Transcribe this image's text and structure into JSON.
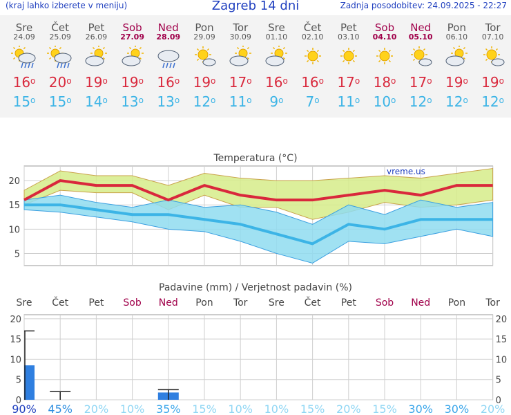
{
  "header": {
    "menu_hint": "(kraj lahko izberete v meniju)",
    "title": "Zagreb 14 dni",
    "updated": "Zadnja posodobitev: 24.09.2025 - 22:27"
  },
  "days": [
    {
      "name": "Sre",
      "date": "24.09",
      "icon": "sun-cloud-rain-icon",
      "max": "16",
      "min": "15",
      "weekend": false
    },
    {
      "name": "Čet",
      "date": "25.09",
      "icon": "sun-cloud-rain-icon",
      "max": "20",
      "min": "15",
      "weekend": false
    },
    {
      "name": "Pet",
      "date": "26.09",
      "icon": "sun-cloud-icon",
      "max": "19",
      "min": "14",
      "weekend": false
    },
    {
      "name": "Sob",
      "date": "27.09",
      "icon": "sun-cloud-icon",
      "max": "19",
      "min": "13",
      "weekend": true
    },
    {
      "name": "Ned",
      "date": "28.09",
      "icon": "cloud-rain-icon",
      "max": "16",
      "min": "13",
      "weekend": true
    },
    {
      "name": "Pon",
      "date": "29.09",
      "icon": "sun-small-cloud-icon",
      "max": "19",
      "min": "12",
      "weekend": false
    },
    {
      "name": "Tor",
      "date": "30.09",
      "icon": "sun-cloud-icon",
      "max": "17",
      "min": "11",
      "weekend": false
    },
    {
      "name": "Sre",
      "date": "01.10",
      "icon": "sun-cloud-icon",
      "max": "16",
      "min": "9",
      "weekend": false
    },
    {
      "name": "Čet",
      "date": "02.10",
      "icon": "sun-icon",
      "max": "16",
      "min": "7",
      "weekend": false
    },
    {
      "name": "Pet",
      "date": "03.10",
      "icon": "sun-icon",
      "max": "17",
      "min": "11",
      "weekend": false
    },
    {
      "name": "Sob",
      "date": "04.10",
      "icon": "sun-icon",
      "max": "18",
      "min": "10",
      "weekend": true
    },
    {
      "name": "Ned",
      "date": "05.10",
      "icon": "sun-small-cloud-icon",
      "max": "17",
      "min": "12",
      "weekend": true
    },
    {
      "name": "Pon",
      "date": "06.10",
      "icon": "sun-cloud-icon",
      "max": "19",
      "min": "12",
      "weekend": false
    },
    {
      "name": "Tor",
      "date": "07.10",
      "icon": "sun-small-cloud-icon",
      "max": "19",
      "min": "12",
      "weekend": false
    }
  ],
  "colors": {
    "max": "#d9283c",
    "min": "#3cb4e6",
    "weekend": "#a0004a",
    "max_band": "#d6ec8a",
    "min_band": "#8fdcf0",
    "overlap": "#7ccf6a",
    "precip_bar": "#2f7fe0"
  },
  "chart_data": [
    {
      "type": "line",
      "title": "Temperatura (°C)",
      "watermark": "vreme.us",
      "categories": [
        "24.09",
        "25.09",
        "26.09",
        "27.09",
        "28.09",
        "29.09",
        "30.09",
        "01.10",
        "02.10",
        "03.10",
        "04.10",
        "05.10",
        "06.10",
        "07.10"
      ],
      "ylim": [
        2.5,
        23
      ],
      "yticks": [
        5,
        10,
        15,
        20
      ],
      "series": [
        {
          "key": "max",
          "values": [
            16,
            20,
            19,
            19,
            16,
            19,
            17,
            16,
            16,
            17,
            18,
            17,
            19,
            19
          ]
        },
        {
          "key": "min",
          "values": [
            15,
            15,
            14,
            13,
            13,
            12,
            11,
            9,
            7,
            11,
            10,
            12,
            12,
            12
          ]
        }
      ],
      "max_band": {
        "low": [
          15,
          18,
          17.5,
          17.5,
          14,
          17,
          14.5,
          14.5,
          12,
          13.5,
          15.5,
          14.5,
          15,
          16
        ],
        "high": [
          18,
          22,
          21,
          21,
          19,
          21.5,
          20.5,
          20,
          20,
          20.5,
          21,
          20.5,
          21.5,
          22.5
        ]
      },
      "min_band": {
        "low": [
          14,
          13.5,
          12.5,
          11.5,
          10,
          9.5,
          7.5,
          5,
          3,
          7.5,
          7,
          8.5,
          10,
          8.5
        ],
        "high": [
          16,
          17,
          15.5,
          14.5,
          16,
          14.5,
          15,
          13.5,
          11,
          15,
          13,
          16,
          14.5,
          15.5
        ]
      }
    },
    {
      "type": "bar",
      "title": "Padavine (mm) / Verjetnost padavin (%)",
      "categories": [
        "Sre",
        "Čet",
        "Pet",
        "Sob",
        "Ned",
        "Pon",
        "Tor",
        "Sre",
        "Čet",
        "Pet",
        "Sob",
        "Ned",
        "Pon",
        "Tor"
      ],
      "ylim": [
        0,
        21
      ],
      "yticks": [
        0,
        5,
        10,
        15,
        20
      ],
      "values": [
        8.5,
        0,
        0,
        0,
        1.8,
        0,
        0,
        0,
        0,
        0,
        0,
        0,
        0,
        0
      ],
      "range_max": [
        17,
        2,
        0,
        0,
        2.5,
        0,
        0,
        0,
        0,
        0,
        0,
        0,
        0,
        0
      ],
      "probability": [
        "90%",
        "45%",
        "20%",
        "10%",
        "35%",
        "15%",
        "10%",
        "10%",
        "15%",
        "20%",
        "15%",
        "30%",
        "30%",
        "20%"
      ]
    }
  ]
}
